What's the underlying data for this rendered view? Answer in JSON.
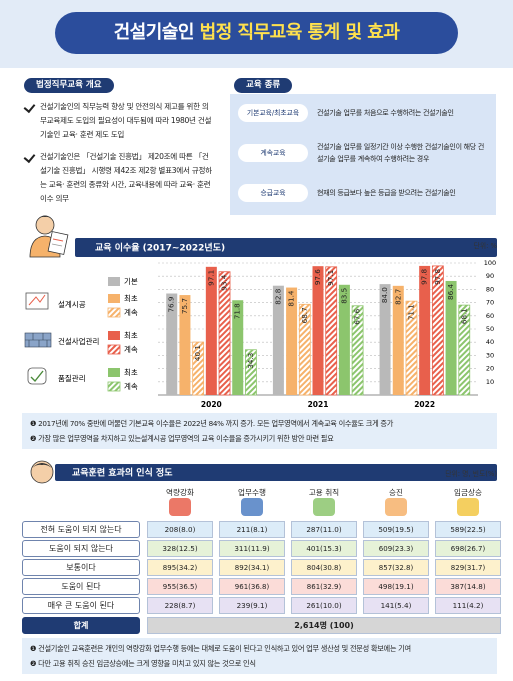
{
  "title": {
    "part1": "건설기술인",
    "part2": "법정 직무교육 통계 및 효과"
  },
  "overview": {
    "heading": "법정직무교육 개요",
    "bullets": [
      "건설기술인의 직무능력 향상 및 안전의식 제고를 위한 의무교육제도 도입의 필요성이 대두됨에 따라 1980년 건설기술인 교육· 훈련 제도 도입",
      "건설기술인은 「건설기술 진흥법」 제20조에 따른 「건설기술 진흥법」 시행령 제42조 제2항 별표3에서 규정하는 교육· 훈련의 종류와 시간, 교육내용에 따라 교육· 훈련 이수 의무"
    ]
  },
  "types": {
    "heading": "교육 종류",
    "rows": [
      {
        "label": "기본교육/최초교육",
        "desc": "건설기술 업무를 처음으로 수행하려는 건설기술인"
      },
      {
        "label": "계속교육",
        "desc": "건설기술 업무를 일정기간 이상 수행한 건설기술인이 해당 건설기술 업무를 계속하여 수행하려는 경우"
      },
      {
        "label": "승급교육",
        "desc": "현재의 등급보다 높은 등급을 받으려는 건설기술인"
      }
    ]
  },
  "chart_data": {
    "type": "bar",
    "title": "교육 이수율 (2017~2022년도)",
    "unit": "단위: %",
    "categories": [
      "2020",
      "2021",
      "2022"
    ],
    "legend_groups": [
      "설계시공",
      "건설사업관리",
      "품질관리"
    ],
    "series": [
      {
        "name": "기본",
        "color": "#b9b9b9",
        "values": [
          76.9,
          82.8,
          84.0
        ],
        "value_labels": [
          "76.9",
          "82.8",
          "84.0"
        ]
      },
      {
        "name": "최초",
        "group": 0,
        "color": "#f6b26b",
        "values": [
          75.7,
          81.4,
          82.7
        ]
      },
      {
        "name": "계속",
        "group": 0,
        "color": "#f6b26b",
        "hatch": true,
        "values": [
          40.1,
          68.7,
          71.1
        ]
      },
      {
        "name": "최초",
        "group": 1,
        "color": "#e8604c",
        "values": [
          97.1,
          97.6,
          97.8
        ]
      },
      {
        "name": "계속",
        "group": 1,
        "color": "#e8604c",
        "hatch": true,
        "values": [
          93.4,
          97.1,
          97.8
        ]
      },
      {
        "name": "최초",
        "group": 2,
        "color": "#8cc56d",
        "values": [
          71.8,
          83.5,
          86.4
        ]
      },
      {
        "name": "계속",
        "group": 2,
        "color": "#8cc56d",
        "hatch": true,
        "values": [
          34.3,
          67.6,
          68.1
        ]
      }
    ],
    "ylim": [
      0,
      100
    ],
    "yticks": [
      10,
      20,
      30,
      40,
      50,
      60,
      70,
      80,
      90,
      100
    ],
    "grid": true
  },
  "chart_notes": [
    "❶ 2017년에 70% 중반에 머물던 기본교육 이수율은 2022년 84% 까지 증가. 모든 업무영역에서 계속교육 이수율도 크게 증가",
    "❷ 가장 많은 업무영역을 차지하고 있는설계시공 업무영역의 교육 이수율을 증가시키기 위한 방안 마련 필요"
  ],
  "effect": {
    "heading": "교육훈련 효과의 인식 정도",
    "unit": "단위: 명, 빈도(%)",
    "columns": [
      "역량강화",
      "업무수행",
      "고용 취직",
      "승진",
      "임금상승"
    ],
    "rows": [
      {
        "label": "전혀 도움이 되지 않는다",
        "color": "#dcecf8",
        "cells": [
          {
            "text": "208(8.0)"
          },
          {
            "text": "211(8.1)"
          },
          {
            "text": "287(11.0)"
          },
          {
            "text": "509(19.5)"
          },
          {
            "text": "589(22.5)"
          }
        ]
      },
      {
        "label": "도움이 되지 않는다",
        "color": "#e6f2d8",
        "cells": [
          {
            "text": "328(12.5)"
          },
          {
            "text": "311(11.9)"
          },
          {
            "text": "401(15.3)"
          },
          {
            "text": "609(23.3)",
            "bold": true
          },
          {
            "text": "698(26.7)",
            "bold": true
          }
        ]
      },
      {
        "label": "보통이다",
        "color": "#fdf1cc",
        "cells": [
          {
            "text": "895(34.2)",
            "bold": true
          },
          {
            "text": "892(34.1)",
            "bold": true
          },
          {
            "text": "804(30.8)",
            "bold": true
          },
          {
            "text": "857(32.8)",
            "bold": true
          },
          {
            "text": "829(31.7)",
            "bold": true
          }
        ]
      },
      {
        "label": "도움이 된다",
        "color": "#fbdcd8",
        "cells": [
          {
            "text": "955(36.5)",
            "bold": true
          },
          {
            "text": "961(36.8)",
            "bold": true
          },
          {
            "text": "861(32.9)",
            "bold": true
          },
          {
            "text": "498(19.1)"
          },
          {
            "text": "387(14.8)"
          }
        ]
      },
      {
        "label": "매우 큰 도움이 된다",
        "color": "#e7e1f3",
        "cells": [
          {
            "text": "228(8.7)"
          },
          {
            "text": "239(9.1)"
          },
          {
            "text": "261(10.0)"
          },
          {
            "text": "141(5.4)"
          },
          {
            "text": "111(4.2)"
          }
        ]
      }
    ],
    "total": {
      "label": "합계",
      "text": "2,614명 (100)"
    },
    "notes": [
      "❶ 건설기술인 교육훈련은 개인의 역량강화 업무수행 등에는 대체로 도움이 된다고 인식하고 있어 업무 생산성 및 전문성 확보에는 기여",
      "❷ 다만 고용 취직 승진 임금상승에는 크게 영향을 미치고 있지 않는 것으로 인식"
    ]
  }
}
